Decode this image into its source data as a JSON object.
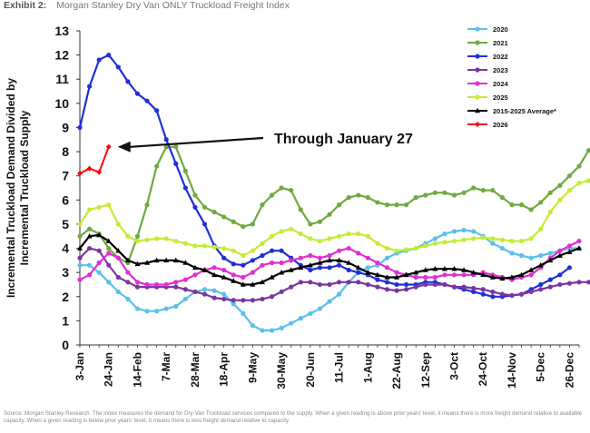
{
  "header": {
    "exhibit_label": "Exhibit 2:",
    "title": "Morgan Stanley Dry Van ONLY Truckload Freight Index"
  },
  "footnote": "Source: Morgan Stanley Research. The index measures the demand for Dry-Van Truckload services compared to the supply. When a given reading is above prior years' level, it means there is more freight demand relative to available capacity. When a given reading is below prior years' level, it means there is less freight demand relative to capacity.",
  "chart_data": {
    "type": "line",
    "title": "",
    "xlabel": "",
    "ylabel": "Incremental Truckload Demand Divided by Incremental Truckload Supply",
    "ylim": [
      0,
      13
    ],
    "yticks": [
      0,
      1,
      2,
      3,
      4,
      5,
      6,
      7,
      8,
      9,
      10,
      11,
      12,
      13
    ],
    "grid": false,
    "legend_position": "top-right",
    "x_weeks": 52,
    "x_tick_labels": [
      "3-Jan",
      "24-Jan",
      "14-Feb",
      "7-Mar",
      "28-Mar",
      "18-Apr",
      "9-May",
      "30-May",
      "20-Jun",
      "11-Jul",
      "1-Aug",
      "22-Aug",
      "12-Sep",
      "3-Oct",
      "24-Oct",
      "14-Nov",
      "5-Dec",
      "26-Dec"
    ],
    "annotation": "Through January 27",
    "series": [
      {
        "name": "2020",
        "color": "#5bc0eb",
        "marker": "circle",
        "values": [
          3.3,
          3.3,
          3.0,
          2.6,
          2.2,
          1.9,
          1.5,
          1.4,
          1.4,
          1.5,
          1.6,
          1.9,
          2.2,
          2.3,
          2.25,
          2.1,
          1.7,
          1.3,
          0.8,
          0.6,
          0.6,
          0.7,
          0.9,
          1.1,
          1.3,
          1.5,
          1.8,
          2.1,
          2.6,
          3.0,
          3.2,
          3.3,
          3.6,
          3.8,
          3.9,
          4.0,
          4.2,
          4.4,
          4.6,
          4.7,
          4.75,
          4.7,
          4.5,
          4.2,
          4.0,
          3.8,
          3.7,
          3.6,
          3.7,
          3.8,
          3.9,
          4.0,
          4.0
        ]
      },
      {
        "name": "2021",
        "color": "#70a940",
        "marker": "circle",
        "values": [
          4.5,
          4.8,
          4.6,
          4.0,
          3.6,
          3.4,
          4.5,
          5.8,
          7.4,
          8.2,
          8.2,
          7.2,
          6.2,
          5.7,
          5.5,
          5.3,
          5.1,
          4.9,
          5.0,
          5.8,
          6.2,
          6.5,
          6.4,
          5.6,
          5.0,
          5.1,
          5.4,
          5.8,
          6.1,
          6.2,
          6.1,
          5.9,
          5.8,
          5.8,
          5.8,
          6.1,
          6.2,
          6.3,
          6.3,
          6.2,
          6.3,
          6.5,
          6.4,
          6.4,
          6.1,
          5.8,
          5.8,
          5.6,
          5.9,
          6.3,
          6.6,
          7.0,
          7.4,
          8.05
        ]
      },
      {
        "name": "2022",
        "color": "#1f2fd8",
        "marker": "circle",
        "values": [
          9.0,
          10.7,
          11.8,
          12.0,
          11.5,
          10.9,
          10.4,
          10.1,
          9.7,
          8.5,
          7.5,
          6.5,
          5.7,
          5.0,
          4.1,
          3.6,
          3.35,
          3.3,
          3.5,
          3.7,
          3.9,
          3.9,
          3.6,
          3.3,
          3.1,
          3.2,
          3.2,
          3.3,
          3.1,
          3.0,
          2.9,
          2.7,
          2.6,
          2.5,
          2.5,
          2.5,
          2.6,
          2.6,
          2.5,
          2.4,
          2.3,
          2.2,
          2.1,
          2.0,
          2.0,
          2.05,
          2.1,
          2.3,
          2.5,
          2.7,
          2.9,
          3.2
        ]
      },
      {
        "name": "2023",
        "color": "#7a36a0",
        "marker": "circle",
        "values": [
          3.6,
          4.0,
          3.9,
          3.3,
          2.8,
          2.6,
          2.4,
          2.4,
          2.4,
          2.4,
          2.4,
          2.3,
          2.2,
          2.1,
          1.95,
          1.9,
          1.85,
          1.85,
          1.85,
          1.9,
          2.0,
          2.2,
          2.4,
          2.6,
          2.6,
          2.5,
          2.5,
          2.6,
          2.6,
          2.6,
          2.5,
          2.4,
          2.3,
          2.25,
          2.3,
          2.4,
          2.5,
          2.5,
          2.5,
          2.4,
          2.4,
          2.35,
          2.3,
          2.2,
          2.1,
          2.05,
          2.1,
          2.2,
          2.3,
          2.4,
          2.5,
          2.55,
          2.6,
          2.6
        ]
      },
      {
        "name": "2024",
        "color": "#e02fd0",
        "marker": "circle",
        "values": [
          2.7,
          2.9,
          3.4,
          3.8,
          3.6,
          3.0,
          2.6,
          2.5,
          2.5,
          2.5,
          2.6,
          2.7,
          2.9,
          3.1,
          3.2,
          3.1,
          2.9,
          2.8,
          3.0,
          3.3,
          3.4,
          3.4,
          3.5,
          3.6,
          3.7,
          3.6,
          3.7,
          3.9,
          4.0,
          3.8,
          3.6,
          3.4,
          3.2,
          3.0,
          2.9,
          2.8,
          2.8,
          2.8,
          2.9,
          2.9,
          2.9,
          2.9,
          3.0,
          2.9,
          2.8,
          2.7,
          2.8,
          2.9,
          3.2,
          3.6,
          3.9,
          4.1,
          4.3
        ]
      },
      {
        "name": "2025",
        "color": "#c4ec36",
        "marker": "circle",
        "values": [
          5.0,
          5.6,
          5.7,
          5.8,
          5.0,
          4.5,
          4.3,
          4.35,
          4.4,
          4.4,
          4.3,
          4.2,
          4.1,
          4.1,
          4.05,
          4.0,
          3.9,
          3.7,
          3.9,
          4.2,
          4.5,
          4.7,
          4.8,
          4.6,
          4.4,
          4.3,
          4.4,
          4.5,
          4.6,
          4.6,
          4.5,
          4.2,
          4.0,
          3.9,
          3.95,
          4.0,
          4.1,
          4.2,
          4.25,
          4.3,
          4.35,
          4.4,
          4.45,
          4.4,
          4.35,
          4.3,
          4.3,
          4.4,
          4.8,
          5.5,
          6.0,
          6.4,
          6.7,
          6.8
        ]
      },
      {
        "name": "2015-2025 Average*",
        "color": "#000000",
        "marker": "triangle",
        "values": [
          4.0,
          4.5,
          4.55,
          4.3,
          3.9,
          3.5,
          3.35,
          3.4,
          3.5,
          3.5,
          3.5,
          3.4,
          3.2,
          3.1,
          2.9,
          2.8,
          2.65,
          2.5,
          2.5,
          2.6,
          2.8,
          3.0,
          3.1,
          3.2,
          3.3,
          3.4,
          3.5,
          3.5,
          3.4,
          3.2,
          3.0,
          2.9,
          2.8,
          2.8,
          2.9,
          3.0,
          3.1,
          3.15,
          3.15,
          3.15,
          3.1,
          3.0,
          2.9,
          2.8,
          2.75,
          2.8,
          2.9,
          3.1,
          3.3,
          3.5,
          3.7,
          3.85,
          4.0
        ]
      },
      {
        "name": "2026",
        "color": "#ff0000",
        "marker": "diamond",
        "values": [
          7.1,
          7.3,
          7.15,
          8.2
        ]
      }
    ]
  }
}
